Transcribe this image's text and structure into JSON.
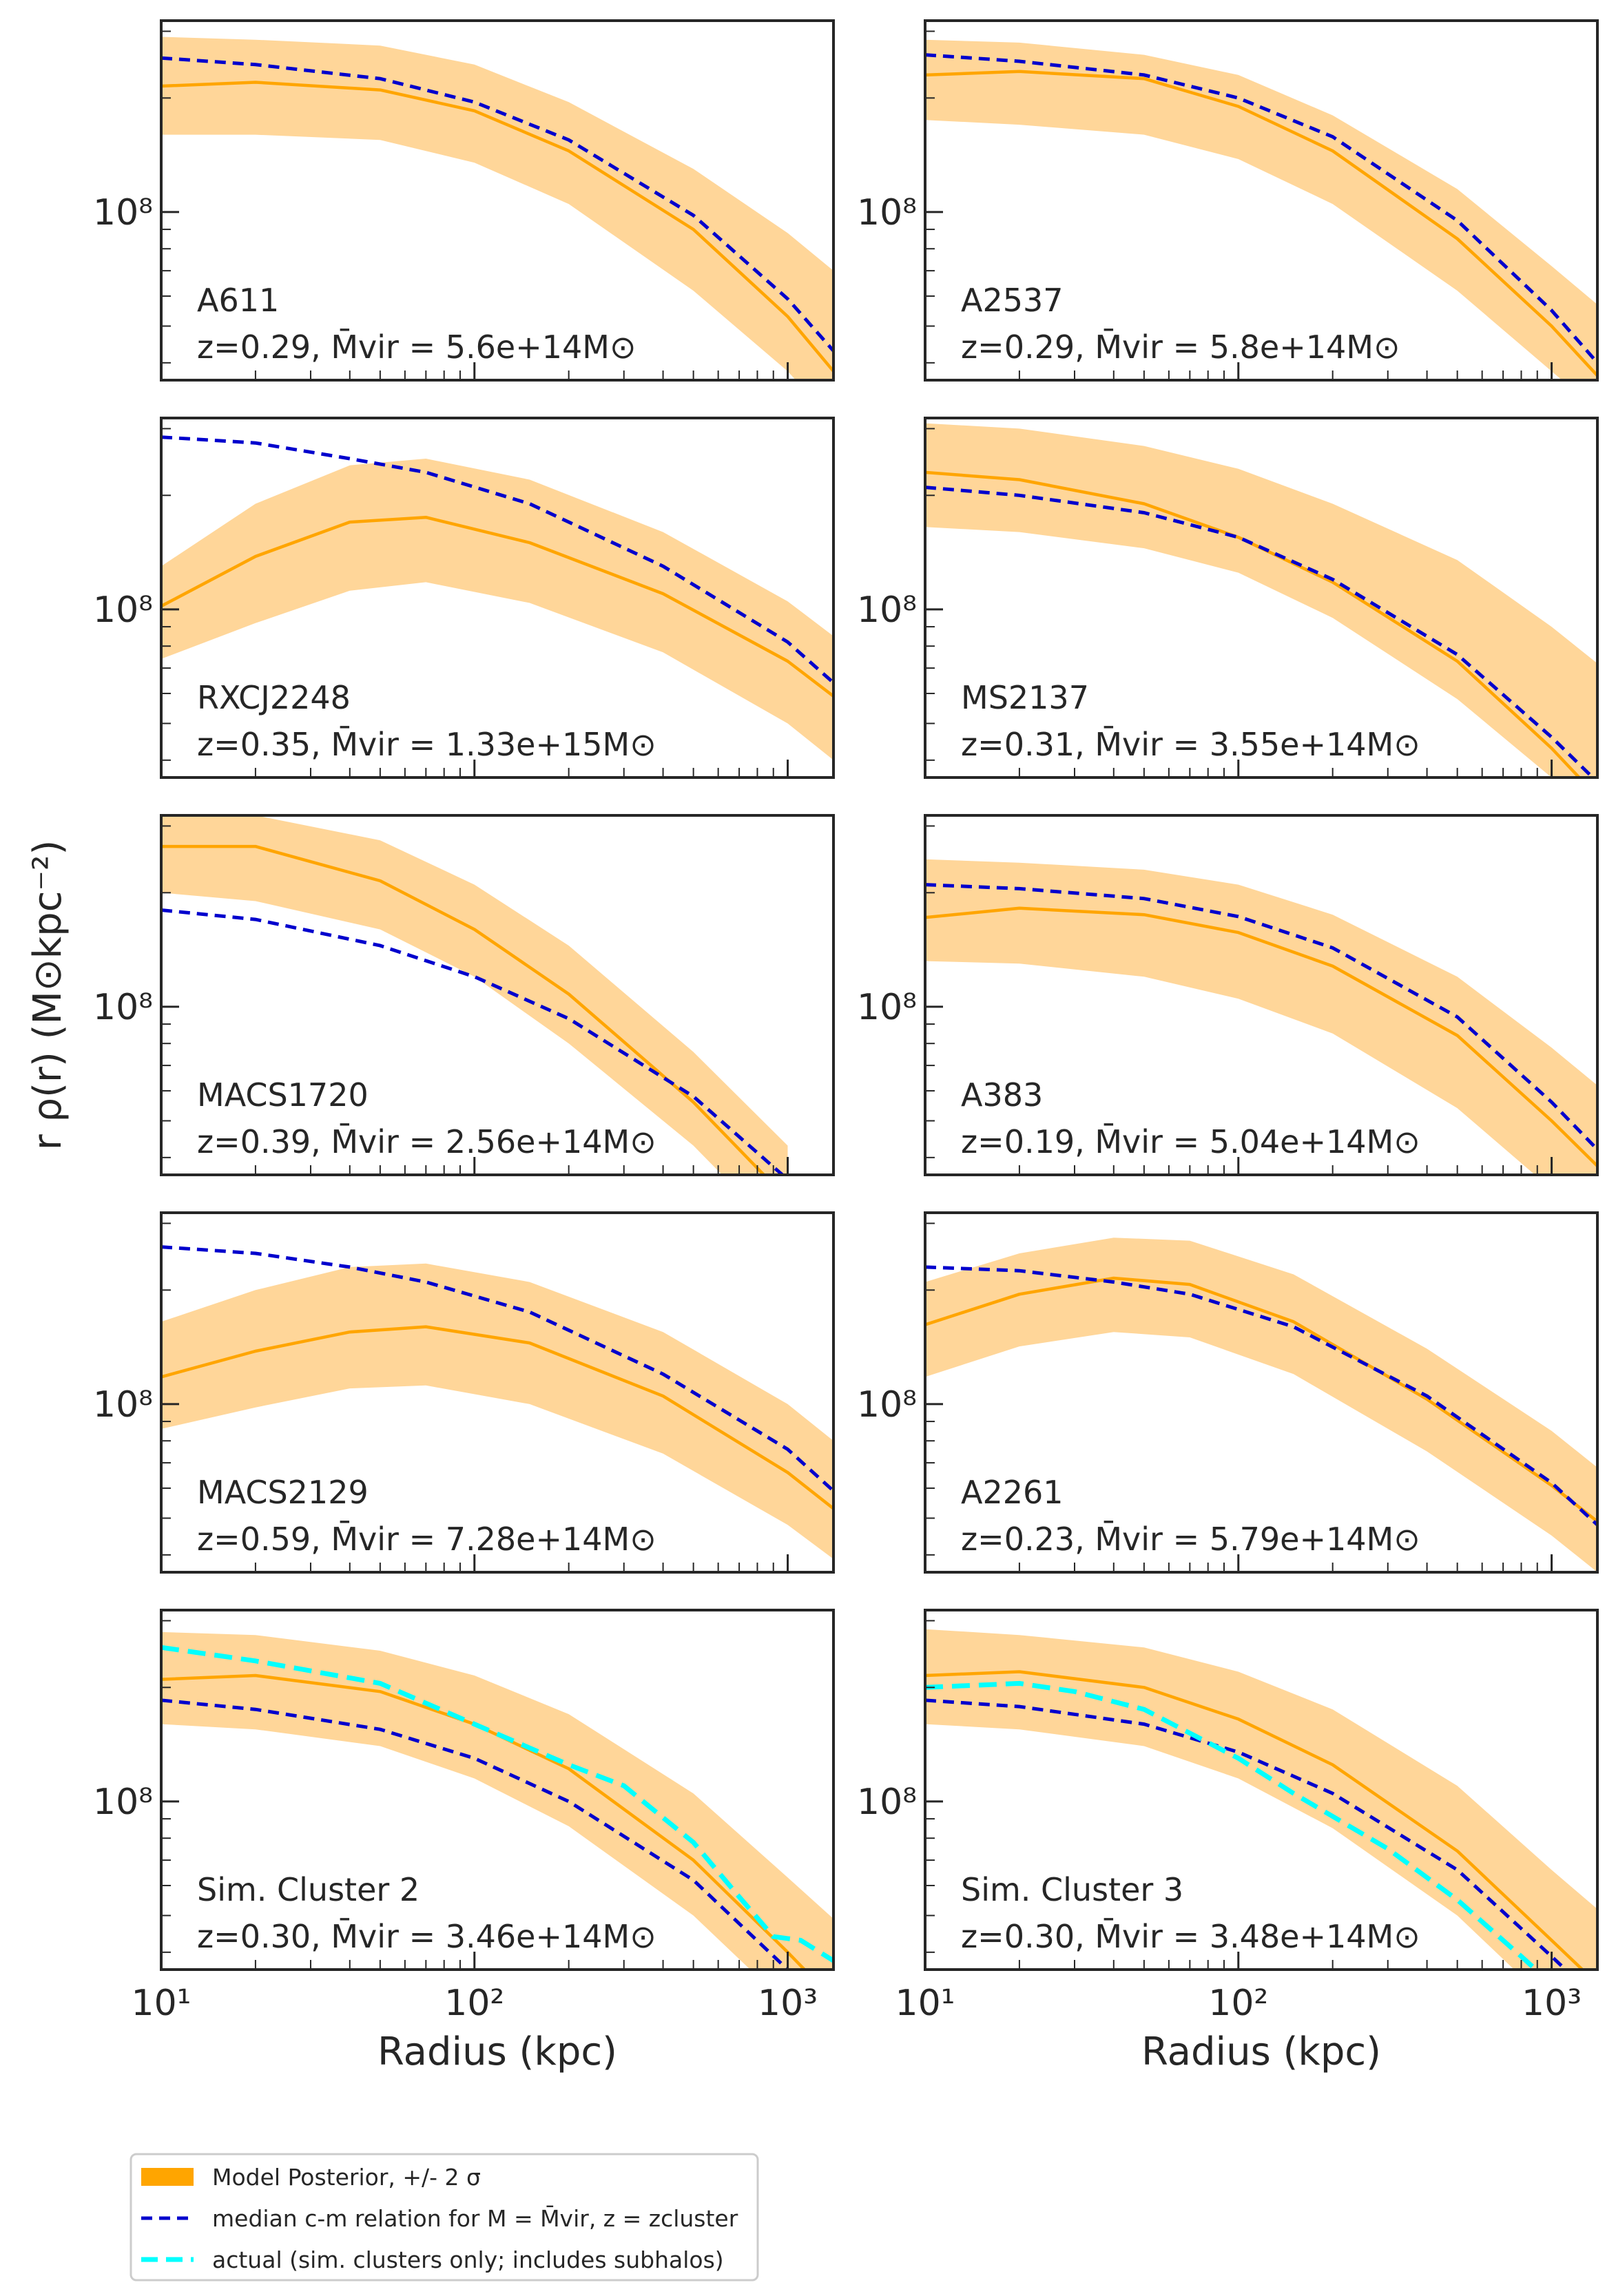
{
  "figure": {
    "ylabel": "r ρ(r) (M⊙kpc⁻²)",
    "xlabel": "Radius (kpc)"
  },
  "colors": {
    "band": "#ffd699",
    "posterior": "#ffa500",
    "median": "#0000cd",
    "actual": "#00ffff"
  },
  "legend": {
    "posterior": "Model Posterior, +/- 2 σ",
    "median": "median c-m relation for M = M̄vir, z = zcluster",
    "actual": "actual (sim. clusters only; includes subhalos)"
  },
  "chart_data": {
    "type": "line",
    "xscale": "log",
    "yscale": "log",
    "xlim": [
      10,
      1400
    ],
    "ylim": [
      36000000.0,
      320000000.0
    ],
    "xticks": [
      {
        "value": 10,
        "label": "10¹"
      },
      {
        "value": 100,
        "label": "10²"
      },
      {
        "value": 1000,
        "label": "10³"
      }
    ],
    "yticks": [
      {
        "value": 100000000.0,
        "label": "10⁸"
      }
    ],
    "panels": [
      {
        "name": "A611",
        "info": "z=0.29, M̄vir = 5.6e+14M⊙",
        "x": [
          10,
          20,
          50,
          100,
          200,
          500,
          1000,
          1400
        ],
        "band_upper": [
          290000000.0,
          285000000.0,
          275000000.0,
          245000000.0,
          195000000.0,
          130000000.0,
          88000000.0,
          70000000.0
        ],
        "band_lower": [
          160000000.0,
          160000000.0,
          155000000.0,
          135000000.0,
          105000000.0,
          62000000.0,
          38000000.0,
          28000000.0
        ],
        "posterior": [
          215000000.0,
          220000000.0,
          210000000.0,
          185000000.0,
          145000000.0,
          90000000.0,
          53000000.0,
          38000000.0
        ],
        "median": [
          255000000.0,
          245000000.0,
          225000000.0,
          195000000.0,
          155000000.0,
          98000000.0,
          59000000.0,
          43000000.0
        ]
      },
      {
        "name": "A2537",
        "info": "z=0.29, M̄vir = 5.8e+14M⊙",
        "x": [
          10,
          20,
          50,
          100,
          200,
          500,
          1000,
          1400
        ],
        "band_upper": [
          285000000.0,
          280000000.0,
          260000000.0,
          230000000.0,
          180000000.0,
          115000000.0,
          72000000.0,
          57000000.0
        ],
        "band_lower": [
          175000000.0,
          170000000.0,
          160000000.0,
          138000000.0,
          105000000.0,
          62000000.0,
          38000000.0,
          30000000.0
        ],
        "posterior": [
          230000000.0,
          235000000.0,
          225000000.0,
          190000000.0,
          145000000.0,
          85000000.0,
          50000000.0,
          37000000.0
        ],
        "median": [
          260000000.0,
          250000000.0,
          230000000.0,
          200000000.0,
          158000000.0,
          95000000.0,
          55000000.0,
          40000000.0
        ]
      },
      {
        "name": "RXCJ2248",
        "info": "z=0.35, M̄vir = 1.33e+15M⊙",
        "x": [
          10,
          20,
          40,
          70,
          150,
          400,
          1000,
          1400
        ],
        "band_upper": [
          130000000.0,
          190000000.0,
          240000000.0,
          250000000.0,
          220000000.0,
          160000000.0,
          105000000.0,
          85000000.0
        ],
        "band_lower": [
          74000000.0,
          92000000.0,
          112000000.0,
          118000000.0,
          104000000.0,
          77000000.0,
          50000000.0,
          40000000.0
        ],
        "posterior": [
          102000000.0,
          138000000.0,
          170000000.0,
          175000000.0,
          150000000.0,
          110000000.0,
          73000000.0,
          59000000.0
        ],
        "median": [
          285000000.0,
          275000000.0,
          250000000.0,
          230000000.0,
          190000000.0,
          130000000.0,
          82000000.0,
          64000000.0
        ]
      },
      {
        "name": "MS2137",
        "info": "z=0.31, M̄vir = 3.55e+14M⊙",
        "x": [
          10,
          20,
          50,
          100,
          200,
          500,
          1000,
          1400
        ],
        "band_upper": [
          310000000.0,
          300000000.0,
          270000000.0,
          235000000.0,
          190000000.0,
          135000000.0,
          90000000.0,
          72000000.0
        ],
        "band_lower": [
          165000000.0,
          160000000.0,
          145000000.0,
          125000000.0,
          95000000.0,
          58000000.0,
          36000000.0,
          28000000.0
        ],
        "posterior": [
          230000000.0,
          220000000.0,
          190000000.0,
          155000000.0,
          118000000.0,
          73000000.0,
          43000000.0,
          32000000.0
        ],
        "median": [
          210000000.0,
          200000000.0,
          180000000.0,
          155000000.0,
          120000000.0,
          76000000.0,
          46000000.0,
          35000000.0
        ]
      },
      {
        "name": "MACS1720",
        "info": "z=0.39, M̄vir = 2.56e+14M⊙",
        "x": [
          10,
          20,
          50,
          100,
          200,
          500,
          1000
        ],
        "band_upper": [
          330000000.0,
          320000000.0,
          275000000.0,
          210000000.0,
          145000000.0,
          76000000.0,
          43000000.0
        ],
        "band_lower": [
          200000000.0,
          190000000.0,
          160000000.0,
          120000000.0,
          80000000.0,
          43000000.0,
          24000000.0
        ],
        "posterior": [
          265000000.0,
          265000000.0,
          215000000.0,
          160000000.0,
          108000000.0,
          56000000.0,
          31000000.0
        ],
        "median": [
          180000000.0,
          170000000.0,
          145000000.0,
          120000000.0,
          93000000.0,
          58000000.0,
          35000000.0
        ]
      },
      {
        "name": "A383",
        "info": "z=0.19, M̄vir = 5.04e+14M⊙",
        "x": [
          10,
          20,
          50,
          100,
          200,
          500,
          1000,
          1400
        ],
        "band_upper": [
          245000000.0,
          240000000.0,
          230000000.0,
          210000000.0,
          175000000.0,
          120000000.0,
          78000000.0,
          62000000.0
        ],
        "band_lower": [
          132000000.0,
          130000000.0,
          120000000.0,
          105000000.0,
          85000000.0,
          54000000.0,
          33000000.0,
          26000000.0
        ],
        "posterior": [
          172000000.0,
          182000000.0,
          175000000.0,
          157000000.0,
          128000000.0,
          84000000.0,
          50000000.0,
          38000000.0
        ],
        "median": [
          210000000.0,
          205000000.0,
          193000000.0,
          173000000.0,
          143000000.0,
          94000000.0,
          56000000.0,
          42000000.0
        ]
      },
      {
        "name": "MACS2129",
        "info": "z=0.59, M̄vir = 7.28e+14M⊙",
        "x": [
          10,
          20,
          40,
          70,
          150,
          400,
          1000,
          1400
        ],
        "band_upper": [
          165000000.0,
          200000000.0,
          230000000.0,
          235000000.0,
          210000000.0,
          155000000.0,
          100000000.0,
          80000000.0
        ],
        "band_lower": [
          86000000.0,
          98000000.0,
          110000000.0,
          112000000.0,
          100000000.0,
          74000000.0,
          48000000.0,
          39000000.0
        ],
        "posterior": [
          118000000.0,
          138000000.0,
          155000000.0,
          160000000.0,
          145000000.0,
          105000000.0,
          66000000.0,
          53000000.0
        ],
        "median": [
          260000000.0,
          250000000.0,
          230000000.0,
          210000000.0,
          175000000.0,
          120000000.0,
          76000000.0,
          59000000.0
        ]
      },
      {
        "name": "A2261",
        "info": "z=0.23, M̄vir = 5.79e+14M⊙",
        "x": [
          10,
          20,
          40,
          70,
          150,
          400,
          1000,
          1400
        ],
        "band_upper": [
          210000000.0,
          250000000.0,
          275000000.0,
          270000000.0,
          220000000.0,
          140000000.0,
          85000000.0,
          68000000.0
        ],
        "band_lower": [
          118000000.0,
          142000000.0,
          155000000.0,
          150000000.0,
          120000000.0,
          75000000.0,
          45000000.0,
          36000000.0
        ],
        "posterior": [
          162000000.0,
          195000000.0,
          215000000.0,
          207000000.0,
          165000000.0,
          103000000.0,
          61000000.0,
          49000000.0
        ],
        "median": [
          230000000.0,
          225000000.0,
          210000000.0,
          195000000.0,
          160000000.0,
          105000000.0,
          62000000.0,
          48000000.0
        ]
      },
      {
        "name": "Sim. Cluster 2",
        "info": "z=0.30, M̄vir = 3.46e+14M⊙",
        "x": [
          10,
          20,
          50,
          100,
          200,
          500,
          1000,
          1400
        ],
        "band_upper": [
          280000000.0,
          275000000.0,
          250000000.0,
          215000000.0,
          170000000.0,
          105000000.0,
          63000000.0,
          49000000.0
        ],
        "band_lower": [
          160000000.0,
          155000000.0,
          140000000.0,
          115000000.0,
          86000000.0,
          50000000.0,
          29000000.0,
          23000000.0
        ],
        "posterior": [
          210000000.0,
          215000000.0,
          195000000.0,
          160000000.0,
          122000000.0,
          70000000.0,
          40000000.0,
          30000000.0
        ],
        "median": [
          185000000.0,
          175000000.0,
          155000000.0,
          130000000.0,
          100000000.0,
          62000000.0,
          36000000.0,
          27000000.0
        ],
        "actual_x": [
          10,
          20,
          50,
          100,
          200,
          300,
          500,
          700,
          900,
          1100,
          1400
        ],
        "actual": [
          255000000.0,
          235000000.0,
          205000000.0,
          160000000.0,
          125000000.0,
          110000000.0,
          78000000.0,
          56000000.0,
          44000000.0,
          43000000.0,
          38000000.0
        ]
      },
      {
        "name": "Sim. Cluster 3",
        "info": "z=0.30, M̄vir = 3.48e+14M⊙",
        "x": [
          10,
          20,
          50,
          100,
          200,
          500,
          1000,
          1400
        ],
        "band_upper": [
          285000000.0,
          275000000.0,
          255000000.0,
          220000000.0,
          175000000.0,
          110000000.0,
          66000000.0,
          52000000.0
        ],
        "band_lower": [
          160000000.0,
          155000000.0,
          140000000.0,
          115000000.0,
          85000000.0,
          50000000.0,
          29000000.0,
          23000000.0
        ],
        "posterior": [
          215000000.0,
          220000000.0,
          200000000.0,
          165000000.0,
          125000000.0,
          74000000.0,
          43000000.0,
          33000000.0
        ],
        "median": [
          185000000.0,
          178000000.0,
          160000000.0,
          135000000.0,
          105000000.0,
          66000000.0,
          39000000.0,
          30000000.0
        ],
        "actual_x": [
          10,
          20,
          30,
          50,
          100,
          150,
          300,
          500,
          800,
          1000
        ],
        "actual": [
          200000000.0,
          205000000.0,
          195000000.0,
          175000000.0,
          130000000.0,
          105000000.0,
          75000000.0,
          55000000.0,
          39000000.0,
          33000000.0
        ]
      }
    ]
  }
}
